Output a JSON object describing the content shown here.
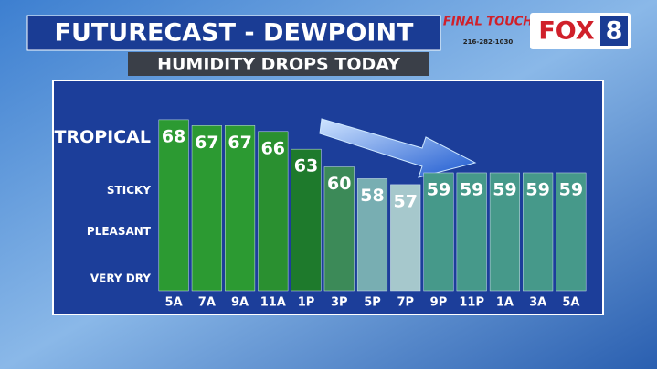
{
  "chart_data": {
    "type": "bar",
    "title": "FUTURECAST - DEWPOINT",
    "subtitle": "HUMIDITY DROPS TODAY",
    "categories": [
      "5A",
      "7A",
      "9A",
      "11A",
      "1P",
      "3P",
      "5P",
      "7P",
      "9P",
      "11P",
      "1A",
      "3A",
      "5A"
    ],
    "values": [
      68,
      67,
      67,
      66,
      63,
      60,
      58,
      57,
      59,
      59,
      59,
      59,
      59
    ],
    "colors": [
      "#2c9a32",
      "#2c9a32",
      "#2c9a32",
      "#2a9030",
      "#1e7a2c",
      "#3c8a58",
      "#78aeb2",
      "#a6c8cc",
      "#46998a",
      "#46998a",
      "#46998a",
      "#46998a",
      "#46998a"
    ],
    "ylim": [
      39,
      70
    ],
    "yticks": [
      {
        "value": 65,
        "label": "TROPICAL"
      },
      {
        "value": 56,
        "label": "STICKY"
      },
      {
        "value": 49,
        "label": "PLEASANT"
      },
      {
        "value": 41,
        "label": "VERY DRY"
      }
    ]
  },
  "branding": {
    "sponsor": "FINAL TOUCH",
    "phone": "216-282-1030",
    "station": "FOX",
    "channel": "8"
  }
}
